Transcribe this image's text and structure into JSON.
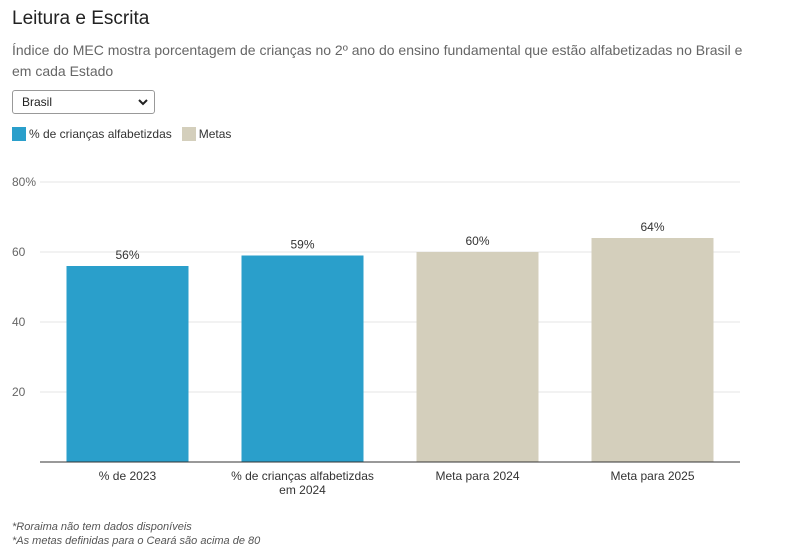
{
  "header": {
    "title": "Leitura e Escrita",
    "subtitle": "Índice do MEC mostra porcentagem de crianças no 2º ano do ensino fundamental que estão alfabetizadas no Brasil e em cada Estado"
  },
  "filter": {
    "selected": "Brasil",
    "icon": "chevron-down-icon"
  },
  "legend": [
    {
      "label": "% de crianças alfabetizdas",
      "color": "#2a9fcb"
    },
    {
      "label": "Metas",
      "color": "#d4cfbc"
    }
  ],
  "chart_data": {
    "type": "bar",
    "categories": [
      "% de 2023",
      "% de crianças alfabetizdas em 2024",
      "Meta para 2024",
      "Meta para 2025"
    ],
    "category_lines": [
      [
        "% de 2023"
      ],
      [
        "% de crianças alfabetizdas",
        "em 2024"
      ],
      [
        "Meta para 2024"
      ],
      [
        "Meta para 2025"
      ]
    ],
    "values": [
      56,
      59,
      60,
      64
    ],
    "value_labels": [
      "56%",
      "59%",
      "60%",
      "64%"
    ],
    "colors": [
      "#2a9fcb",
      "#2a9fcb",
      "#d4cfbc",
      "#d4cfbc"
    ],
    "ylim": [
      0,
      80
    ],
    "yticks": [
      20,
      40,
      60,
      80
    ],
    "ytick_labels": [
      "20",
      "40",
      "60",
      "80%"
    ],
    "grid": true
  },
  "footnotes": [
    "*Roraima não tem dados disponíveis",
    "*As metas definidas para o Ceará são acima de 80"
  ]
}
